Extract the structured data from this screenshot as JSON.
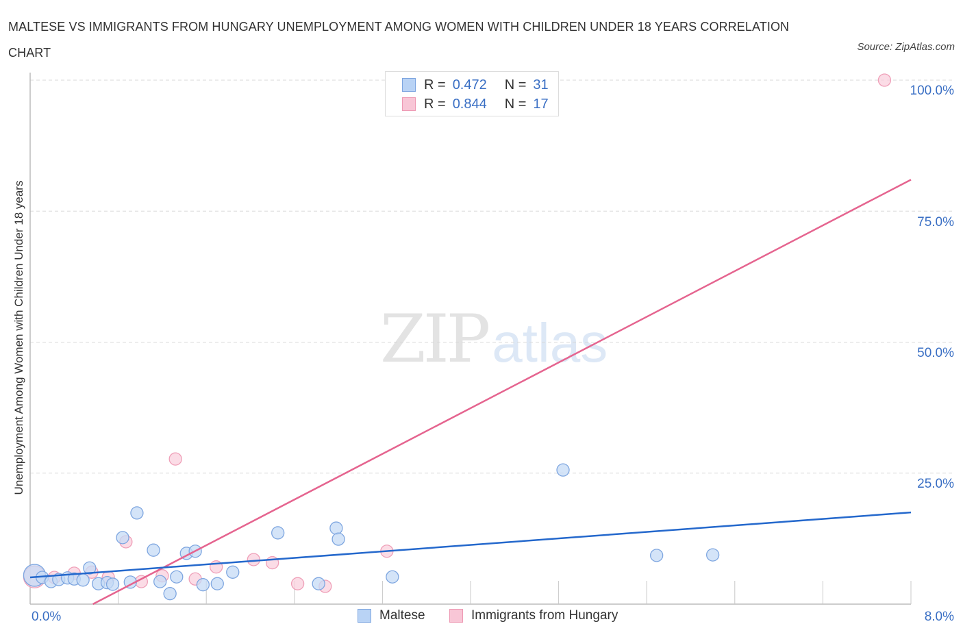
{
  "title": "MALTESE VS IMMIGRANTS FROM HUNGARY UNEMPLOYMENT AMONG WOMEN WITH CHILDREN UNDER 18 YEARS CORRELATION CHART",
  "source": "Source: ZipAtlas.com",
  "watermark": {
    "zip": "ZIP",
    "atlas": "atlas"
  },
  "legend_top": {
    "rows": [
      {
        "r_label": "R =",
        "r_value": "0.472",
        "n_label": "N =",
        "n_value": "31",
        "color": "#b9d3f5",
        "border": "#7ea6e0"
      },
      {
        "r_label": "R =",
        "r_value": "0.844",
        "n_label": "N =",
        "n_value": "17",
        "color": "#f8c6d6",
        "border": "#ee9ab4"
      }
    ]
  },
  "legend_bottom": [
    {
      "label": "Maltese",
      "color": "#b9d3f5",
      "border": "#7ea6e0"
    },
    {
      "label": "Immigrants from Hungary",
      "color": "#f8c6d6",
      "border": "#ee9ab4"
    }
  ],
  "axes": {
    "ylabel": "Unemployment Among Women with Children Under 18 years",
    "x_min_label": "0.0%",
    "x_max_label": "8.0%",
    "y_ticks": [
      "100.0%",
      "75.0%",
      "50.0%",
      "25.0%"
    ]
  },
  "colors": {
    "maltese_fill": "#c6dbf6",
    "maltese_stroke": "#7ea6e0",
    "maltese_line": "#2468cc",
    "hungary_fill": "#f9d0dd",
    "hungary_stroke": "#ef9fb8",
    "hungary_line": "#e5648f",
    "axis_text": "#3a6fc4",
    "grid": "#d8d8d8"
  },
  "chart_data": {
    "type": "scatter",
    "title": "MALTESE VS IMMIGRANTS FROM HUNGARY UNEMPLOYMENT AMONG WOMEN WITH CHILDREN UNDER 18 YEARS CORRELATION CHART",
    "xlabel": "",
    "ylabel": "Unemployment Among Women with Children Under 18 years",
    "xlim": [
      0,
      8
    ],
    "ylim": [
      0,
      100
    ],
    "x_tick_labels": [
      "0.0%",
      "8.0%"
    ],
    "y_tick_labels": [
      "25.0%",
      "50.0%",
      "75.0%",
      "100.0%"
    ],
    "grid": true,
    "legend_position": "bottom",
    "series": [
      {
        "name": "Maltese",
        "R": 0.472,
        "N": 31,
        "points": [
          [
            0.04,
            5.5
          ],
          [
            0.11,
            5.1
          ],
          [
            0.19,
            4.3
          ],
          [
            0.26,
            4.7
          ],
          [
            0.34,
            5.0
          ],
          [
            0.4,
            4.8
          ],
          [
            0.48,
            4.6
          ],
          [
            0.54,
            6.9
          ],
          [
            0.62,
            3.9
          ],
          [
            0.7,
            4.1
          ],
          [
            0.75,
            3.8
          ],
          [
            0.84,
            12.7
          ],
          [
            0.91,
            4.2
          ],
          [
            0.97,
            17.4
          ],
          [
            1.12,
            10.3
          ],
          [
            1.18,
            4.3
          ],
          [
            1.27,
            2.0
          ],
          [
            1.33,
            5.2
          ],
          [
            1.42,
            9.7
          ],
          [
            1.5,
            10.1
          ],
          [
            1.57,
            3.7
          ],
          [
            1.7,
            3.9
          ],
          [
            1.84,
            6.1
          ],
          [
            2.25,
            13.6
          ],
          [
            2.62,
            3.9
          ],
          [
            2.78,
            14.5
          ],
          [
            2.8,
            12.4
          ],
          [
            3.29,
            5.2
          ],
          [
            4.84,
            25.6
          ],
          [
            5.69,
            9.3
          ],
          [
            6.2,
            9.4
          ]
        ],
        "trend": {
          "x": [
            0,
            8
          ],
          "y": [
            5.1,
            17.5
          ]
        }
      },
      {
        "name": "Immigrants from Hungary",
        "R": 0.844,
        "N": 17,
        "points": [
          [
            0.04,
            5.2
          ],
          [
            0.22,
            5.1
          ],
          [
            0.4,
            5.9
          ],
          [
            0.56,
            6.1
          ],
          [
            0.71,
            5.1
          ],
          [
            0.87,
            11.9
          ],
          [
            1.01,
            4.3
          ],
          [
            1.2,
            5.4
          ],
          [
            1.32,
            27.7
          ],
          [
            1.5,
            4.8
          ],
          [
            1.69,
            7.1
          ],
          [
            2.03,
            8.5
          ],
          [
            2.2,
            7.9
          ],
          [
            2.43,
            3.9
          ],
          [
            2.68,
            3.4
          ],
          [
            3.24,
            10.1
          ],
          [
            7.76,
            100.0
          ]
        ],
        "trend": {
          "x": [
            0.57,
            8
          ],
          "y": [
            0,
            81.0
          ]
        }
      }
    ]
  }
}
